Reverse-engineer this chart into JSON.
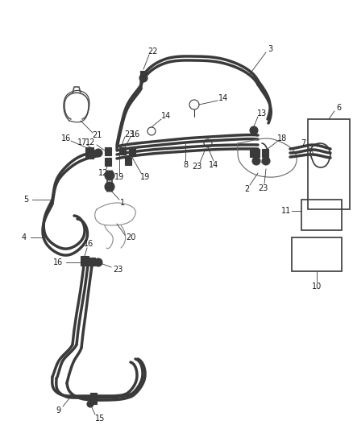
{
  "bg_color": "#ffffff",
  "line_color": "#3a3a3a",
  "label_color": "#1a1a1a",
  "figsize": [
    4.38,
    5.33
  ],
  "dpi": 100,
  "xlim": [
    0,
    438
  ],
  "ylim": [
    0,
    533
  ]
}
